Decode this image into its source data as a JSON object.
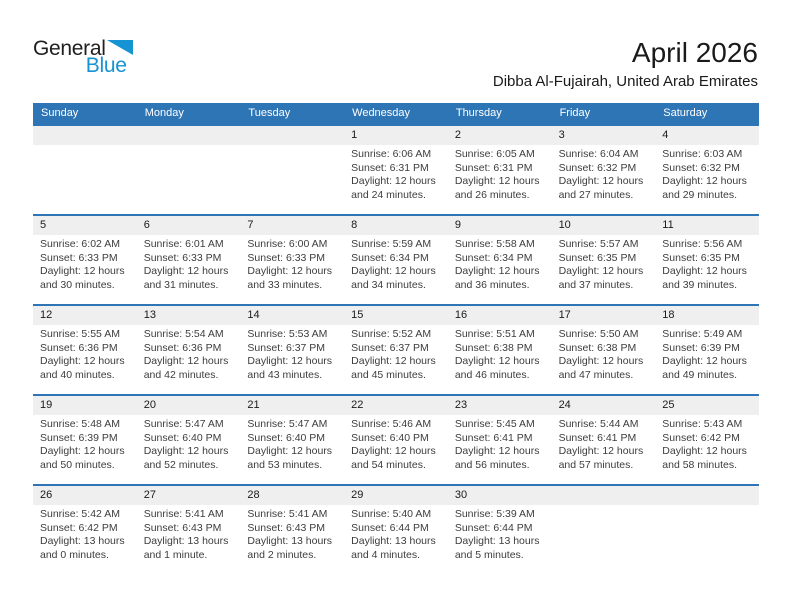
{
  "logo": {
    "part1": "General",
    "part2": "Blue"
  },
  "header": {
    "title": "April 2026",
    "subtitle": "Dibba Al-Fujairah, United Arab Emirates"
  },
  "colors": {
    "header_blue": "#2e75b6",
    "logo_blue": "#1593d2",
    "date_band_gray": "#efefef"
  },
  "calendar": {
    "day_headers": [
      "Sunday",
      "Monday",
      "Tuesday",
      "Wednesday",
      "Thursday",
      "Friday",
      "Saturday"
    ],
    "weeks": [
      [
        null,
        null,
        null,
        {
          "day": "1",
          "lines": [
            "Sunrise: 6:06 AM",
            "Sunset: 6:31 PM",
            "Daylight: 12 hours",
            "and 24 minutes."
          ]
        },
        {
          "day": "2",
          "lines": [
            "Sunrise: 6:05 AM",
            "Sunset: 6:31 PM",
            "Daylight: 12 hours",
            "and 26 minutes."
          ]
        },
        {
          "day": "3",
          "lines": [
            "Sunrise: 6:04 AM",
            "Sunset: 6:32 PM",
            "Daylight: 12 hours",
            "and 27 minutes."
          ]
        },
        {
          "day": "4",
          "lines": [
            "Sunrise: 6:03 AM",
            "Sunset: 6:32 PM",
            "Daylight: 12 hours",
            "and 29 minutes."
          ]
        }
      ],
      [
        {
          "day": "5",
          "lines": [
            "Sunrise: 6:02 AM",
            "Sunset: 6:33 PM",
            "Daylight: 12 hours",
            "and 30 minutes."
          ]
        },
        {
          "day": "6",
          "lines": [
            "Sunrise: 6:01 AM",
            "Sunset: 6:33 PM",
            "Daylight: 12 hours",
            "and 31 minutes."
          ]
        },
        {
          "day": "7",
          "lines": [
            "Sunrise: 6:00 AM",
            "Sunset: 6:33 PM",
            "Daylight: 12 hours",
            "and 33 minutes."
          ]
        },
        {
          "day": "8",
          "lines": [
            "Sunrise: 5:59 AM",
            "Sunset: 6:34 PM",
            "Daylight: 12 hours",
            "and 34 minutes."
          ]
        },
        {
          "day": "9",
          "lines": [
            "Sunrise: 5:58 AM",
            "Sunset: 6:34 PM",
            "Daylight: 12 hours",
            "and 36 minutes."
          ]
        },
        {
          "day": "10",
          "lines": [
            "Sunrise: 5:57 AM",
            "Sunset: 6:35 PM",
            "Daylight: 12 hours",
            "and 37 minutes."
          ]
        },
        {
          "day": "11",
          "lines": [
            "Sunrise: 5:56 AM",
            "Sunset: 6:35 PM",
            "Daylight: 12 hours",
            "and 39 minutes."
          ]
        }
      ],
      [
        {
          "day": "12",
          "lines": [
            "Sunrise: 5:55 AM",
            "Sunset: 6:36 PM",
            "Daylight: 12 hours",
            "and 40 minutes."
          ]
        },
        {
          "day": "13",
          "lines": [
            "Sunrise: 5:54 AM",
            "Sunset: 6:36 PM",
            "Daylight: 12 hours",
            "and 42 minutes."
          ]
        },
        {
          "day": "14",
          "lines": [
            "Sunrise: 5:53 AM",
            "Sunset: 6:37 PM",
            "Daylight: 12 hours",
            "and 43 minutes."
          ]
        },
        {
          "day": "15",
          "lines": [
            "Sunrise: 5:52 AM",
            "Sunset: 6:37 PM",
            "Daylight: 12 hours",
            "and 45 minutes."
          ]
        },
        {
          "day": "16",
          "lines": [
            "Sunrise: 5:51 AM",
            "Sunset: 6:38 PM",
            "Daylight: 12 hours",
            "and 46 minutes."
          ]
        },
        {
          "day": "17",
          "lines": [
            "Sunrise: 5:50 AM",
            "Sunset: 6:38 PM",
            "Daylight: 12 hours",
            "and 47 minutes."
          ]
        },
        {
          "day": "18",
          "lines": [
            "Sunrise: 5:49 AM",
            "Sunset: 6:39 PM",
            "Daylight: 12 hours",
            "and 49 minutes."
          ]
        }
      ],
      [
        {
          "day": "19",
          "lines": [
            "Sunrise: 5:48 AM",
            "Sunset: 6:39 PM",
            "Daylight: 12 hours",
            "and 50 minutes."
          ]
        },
        {
          "day": "20",
          "lines": [
            "Sunrise: 5:47 AM",
            "Sunset: 6:40 PM",
            "Daylight: 12 hours",
            "and 52 minutes."
          ]
        },
        {
          "day": "21",
          "lines": [
            "Sunrise: 5:47 AM",
            "Sunset: 6:40 PM",
            "Daylight: 12 hours",
            "and 53 minutes."
          ]
        },
        {
          "day": "22",
          "lines": [
            "Sunrise: 5:46 AM",
            "Sunset: 6:40 PM",
            "Daylight: 12 hours",
            "and 54 minutes."
          ]
        },
        {
          "day": "23",
          "lines": [
            "Sunrise: 5:45 AM",
            "Sunset: 6:41 PM",
            "Daylight: 12 hours",
            "and 56 minutes."
          ]
        },
        {
          "day": "24",
          "lines": [
            "Sunrise: 5:44 AM",
            "Sunset: 6:41 PM",
            "Daylight: 12 hours",
            "and 57 minutes."
          ]
        },
        {
          "day": "25",
          "lines": [
            "Sunrise: 5:43 AM",
            "Sunset: 6:42 PM",
            "Daylight: 12 hours",
            "and 58 minutes."
          ]
        }
      ],
      [
        {
          "day": "26",
          "lines": [
            "Sunrise: 5:42 AM",
            "Sunset: 6:42 PM",
            "Daylight: 13 hours",
            "and 0 minutes."
          ]
        },
        {
          "day": "27",
          "lines": [
            "Sunrise: 5:41 AM",
            "Sunset: 6:43 PM",
            "Daylight: 13 hours",
            "and 1 minute."
          ]
        },
        {
          "day": "28",
          "lines": [
            "Sunrise: 5:41 AM",
            "Sunset: 6:43 PM",
            "Daylight: 13 hours",
            "and 2 minutes."
          ]
        },
        {
          "day": "29",
          "lines": [
            "Sunrise: 5:40 AM",
            "Sunset: 6:44 PM",
            "Daylight: 13 hours",
            "and 4 minutes."
          ]
        },
        {
          "day": "30",
          "lines": [
            "Sunrise: 5:39 AM",
            "Sunset: 6:44 PM",
            "Daylight: 13 hours",
            "and 5 minutes."
          ]
        },
        null,
        null
      ]
    ]
  }
}
